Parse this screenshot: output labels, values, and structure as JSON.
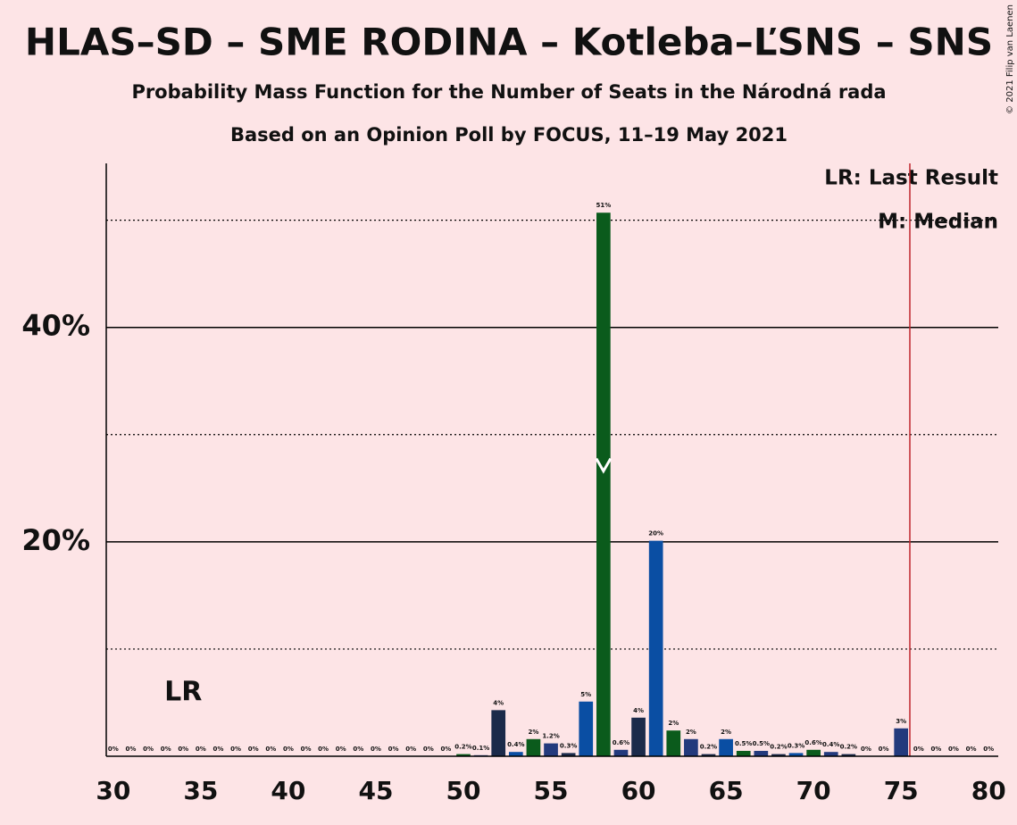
{
  "chart_data": {
    "type": "bar",
    "title": "HLAS–SD – SME RODINA – Kotleba–ĽSNS – SNS",
    "subtitle": "Probability Mass Function for the Number of Seats in the Národná rada",
    "subtitle2": "Based on an Opinion Poll by FOCUS, 11–19 May 2021",
    "copyright": "© 2021 Filip van Laenen",
    "x": [
      30,
      31,
      32,
      33,
      34,
      35,
      36,
      37,
      38,
      39,
      40,
      41,
      42,
      43,
      44,
      45,
      46,
      47,
      48,
      49,
      50,
      51,
      52,
      53,
      54,
      55,
      56,
      57,
      58,
      59,
      60,
      61,
      62,
      63,
      64,
      65,
      66,
      67,
      68,
      69,
      70,
      71,
      72,
      73,
      74,
      75,
      76,
      77,
      78,
      79,
      80
    ],
    "values": [
      0,
      0,
      0,
      0,
      0,
      0,
      0,
      0,
      0,
      0,
      0,
      0,
      0,
      0,
      0,
      0,
      0,
      0,
      0,
      0,
      0.2,
      0.1,
      4.3,
      0.4,
      1.6,
      1.2,
      0.3,
      5.1,
      50.7,
      0.6,
      3.6,
      20.1,
      2.4,
      1.6,
      0.2,
      1.6,
      0.5,
      0.5,
      0.2,
      0.3,
      0.6,
      0.4,
      0.2,
      0,
      0,
      2.6,
      0,
      0,
      0,
      0,
      0
    ],
    "value_labels": [
      "0%",
      "0%",
      "0%",
      "0%",
      "0%",
      "0%",
      "0%",
      "0%",
      "0%",
      "0%",
      "0%",
      "0%",
      "0%",
      "0%",
      "0%",
      "0%",
      "0%",
      "0%",
      "0%",
      "0%",
      "0.2%",
      "0.1%",
      "4%",
      "0.4%",
      "2%",
      "1.2%",
      "0.3%",
      "5%",
      "51%",
      "0.6%",
      "4%",
      "20%",
      "2%",
      "2%",
      "0.2%",
      "2%",
      "0.5%",
      "0.5%",
      "0.2%",
      "0.3%",
      "0.6%",
      "0.4%",
      "0.2%",
      "0%",
      "0%",
      "3%",
      "0%",
      "0%",
      "0%",
      "0%",
      "0%"
    ],
    "palette": [
      "#0b5b1c",
      "#233a7d",
      "#1b2a4a",
      "#0a4ea3"
    ],
    "xlim": [
      29.6,
      80.55
    ],
    "xticks": [
      30,
      35,
      40,
      45,
      50,
      55,
      60,
      65,
      70,
      75,
      80
    ],
    "ylim": [
      0,
      55.3
    ],
    "yticks": [
      {
        "value": 20,
        "label": "20%"
      },
      {
        "value": 40,
        "label": "40%"
      }
    ],
    "minor_yticks": [
      10,
      30,
      50
    ],
    "last_result": 34,
    "last_result_label": "LR",
    "median": 58,
    "majority": 75.5,
    "legend": [
      "LR: Last Result",
      "M: Median"
    ]
  }
}
